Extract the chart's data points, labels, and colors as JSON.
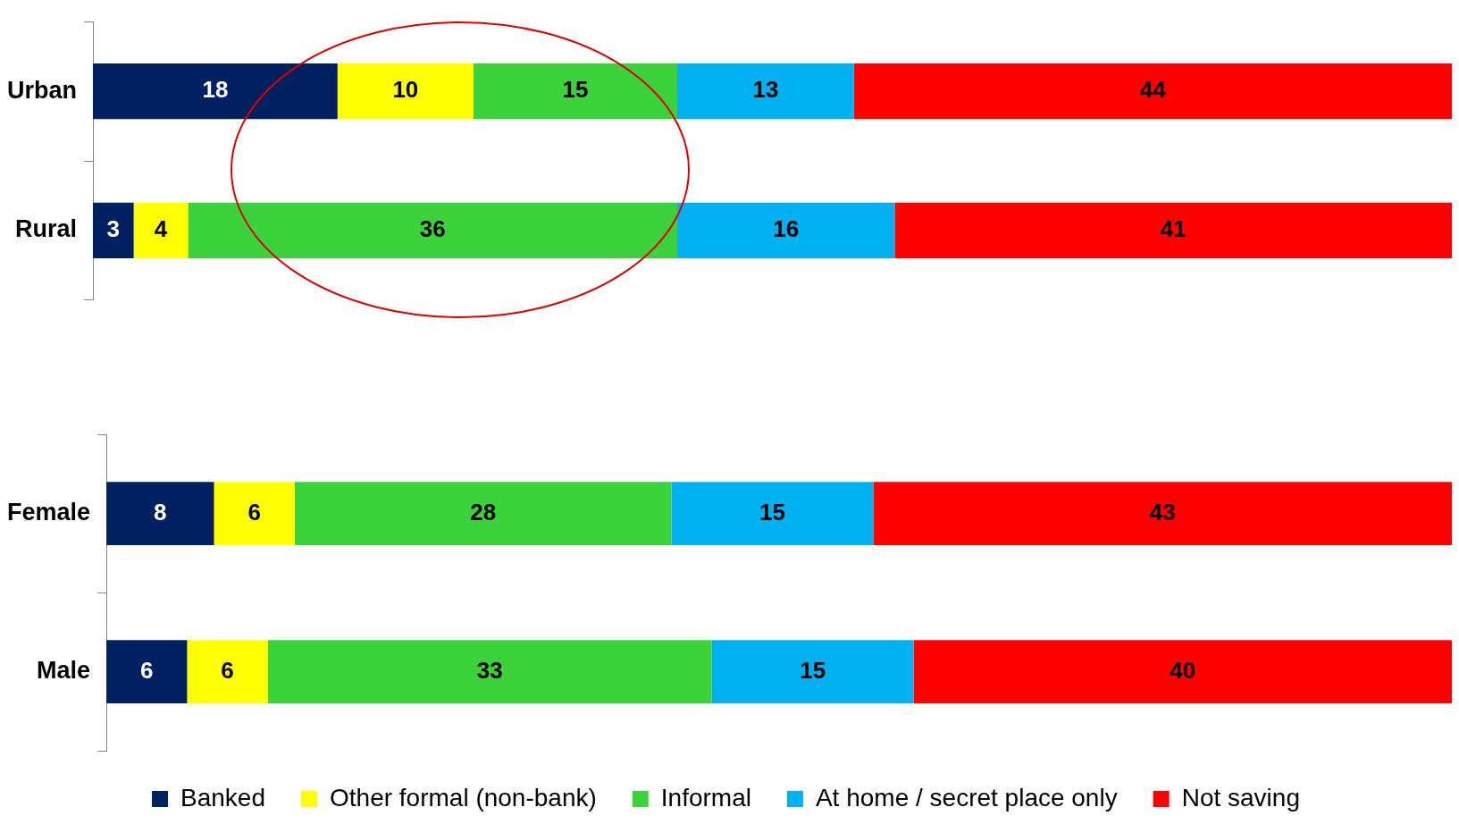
{
  "chart_data": [
    {
      "type": "bar",
      "orientation": "horizontal",
      "stacked": true,
      "categories": [
        "Urban",
        "Rural"
      ],
      "xlim": [
        0,
        100
      ],
      "tick_labels": "y",
      "grid": false,
      "legend": false,
      "data_labels": true,
      "series": [
        {
          "color": "#002060",
          "values": [
            18,
            3
          ]
        },
        {
          "color": "#ffff00",
          "values": [
            10,
            4
          ]
        },
        {
          "color": "#3cd23c",
          "values": [
            15,
            36
          ]
        },
        {
          "color": "#00b0f0",
          "values": [
            13,
            16
          ]
        },
        {
          "color": "#ff0000",
          "values": [
            44,
            41
          ]
        }
      ]
    },
    {
      "type": "bar",
      "orientation": "horizontal",
      "stacked": true,
      "categories": [
        "Female",
        "Male"
      ],
      "xlim": [
        0,
        100
      ],
      "tick_labels": "y",
      "grid": false,
      "legend": "bottom",
      "data_labels": true,
      "series": [
        {
          "name": "Banked",
          "color": "#002060",
          "values": [
            8,
            6
          ]
        },
        {
          "name": "Other formal (non-bank)",
          "color": "#ffff00",
          "values": [
            6,
            6
          ]
        },
        {
          "name": "Informal",
          "color": "#3cd23c",
          "values": [
            28,
            33
          ]
        },
        {
          "name": "At home / secret place only",
          "color": "#00b0f0",
          "values": [
            15,
            15
          ]
        },
        {
          "name": "Not saving",
          "color": "#ff0000",
          "values": [
            43,
            40
          ]
        }
      ]
    }
  ]
}
